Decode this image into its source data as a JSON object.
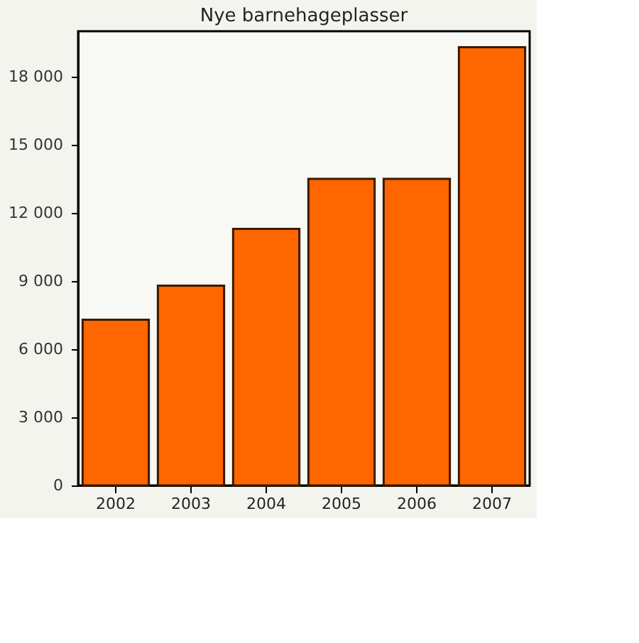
{
  "chart_data": {
    "type": "bar",
    "title": "Nye barnehageplasser",
    "categories": [
      "2002",
      "2003",
      "2004",
      "2005",
      "2006",
      "2007"
    ],
    "values": [
      7300,
      8800,
      11300,
      13500,
      13500,
      19300
    ],
    "color": "#ff6600",
    "ylim": [
      0,
      20000
    ],
    "yticks": [
      0,
      {
        "value": 3000,
        "label": "3 000"
      },
      {
        "value": 6000,
        "label": "6 000"
      },
      {
        "value": 9000,
        "label": "9 000"
      },
      {
        "value": 12000,
        "label": "12 000"
      },
      {
        "value": 15000,
        "label": "15 000"
      },
      {
        "value": 18000,
        "label": "18 000"
      }
    ],
    "grid": false
  }
}
